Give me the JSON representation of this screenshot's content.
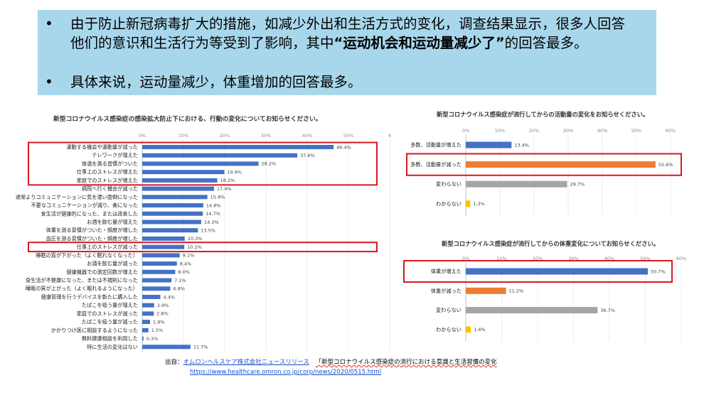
{
  "slide": {
    "bullets": [
      {
        "marker": "•",
        "pre": "由于防止新冠病毒扩大的措施，如减少外出和生活方式的变化，调查结果显示，很多人回答他们的意识和生活行为等受到了影响，其中",
        "bold": "“运动机会和运动量减少了”",
        "post": "的回答最多。"
      },
      {
        "marker": "•",
        "pre": "具体来说，运动量减少，体重增加的回答最多。",
        "bold": "",
        "post": ""
      }
    ],
    "source": {
      "label": "出自：",
      "publisher": "オムロンヘルスケア株式会社ニュースリリース",
      "citation": "「新型コロナウイルス感染症の流行における意識と生活習慣の変化",
      "url": "https://www.healthcare.omron.co.jp/corp/news/2020/0515.html"
    }
  },
  "chart_data": [
    {
      "type": "bar",
      "orientation": "horizontal",
      "title": "新型コロナウイルス感染症の感染拡大防止下における、行動の変化についてお知らせください。",
      "xlim": [
        0,
        60
      ],
      "xticks": [
        "0%",
        "10%",
        "20%",
        "30%",
        "40%",
        "50%",
        "6"
      ],
      "color": "#4472c4",
      "categories": [
        "運動する機会や運動量が減った",
        "テレワークが増えた",
        "体温を測る習慣がついた",
        "仕事上のストレスが増えた",
        "家庭でのストレスが増えた",
        "病院へ行く機会が減った",
        "通常よりコミュニケーションに気を遣い面倒になった",
        "不要なコミュニケーションが減り、楽になった",
        "食生活が健康的になった、または改善した",
        "お酒を飲む量が増えた",
        "体重を測る習慣がついた・頻度が増した",
        "血圧を測る習慣がついた・頻度が増した",
        "仕事上のストレスが減った",
        "睡眠の質が下がった（よく眠れなくなった）",
        "お酒を飲む量が減った",
        "健康機器での測定回数が増えた",
        "食生活が不健康になった、または不規則になった",
        "睡眠の質が上がった（よく眠れるようになった）",
        "健康管理を行うデバイスを新たに購入した",
        "たばこを吸う量が増えた",
        "家庭でのストレスが減った",
        "たばこを吸う量が減った",
        "かかりつけ医に相談するようになった",
        "無料健康相談を利用した",
        "特に生活の変化はない"
      ],
      "values": [
        46.4,
        37.6,
        28.2,
        19.9,
        18.2,
        17.4,
        15.8,
        14.8,
        14.7,
        14.3,
        13.5,
        10.3,
        10.2,
        9.1,
        8.4,
        8.0,
        7.1,
        6.8,
        4.4,
        2.9,
        2.8,
        1.9,
        1.5,
        0.3,
        11.7
      ],
      "value_labels": [
        "46.4%",
        "37.6%",
        "28.2%",
        "19.9%",
        "18.2%",
        "17.4%",
        "15.8%",
        "14.8%",
        "14.7%",
        "14.3%",
        "13.5%",
        "10.3%",
        "10.2%",
        "9.1%",
        "8.4%",
        "8.0%",
        "7.1%",
        "6.8%",
        "4.4%",
        "2.9%",
        "2.8%",
        "1.9%",
        "1.5%",
        "0.3%",
        "11.7%"
      ],
      "highlight_groups": [
        [
          0,
          4
        ],
        [
          12,
          12
        ]
      ]
    },
    {
      "type": "bar",
      "orientation": "horizontal",
      "title": "新型コロナウイルス感染症が流行してからの活動量の変化をお知らせください。",
      "xlim": [
        0,
        60
      ],
      "xticks": [
        "0%",
        "10%",
        "20%",
        "30%",
        "40%",
        "50%",
        "60%"
      ],
      "categories": [
        "多数、活動量が増えた",
        "多数、活動量が減った",
        "変わらない",
        "わからない"
      ],
      "values": [
        13.4,
        55.6,
        29.7,
        1.3
      ],
      "value_labels": [
        "13.4%",
        "55.6%",
        "29.7%",
        "1.3%"
      ],
      "colors": [
        "#4472c4",
        "#ed7d31",
        "#a5a5a5",
        "#ffc000"
      ],
      "highlight_groups": [
        [
          1,
          1
        ]
      ]
    },
    {
      "type": "bar",
      "orientation": "horizontal",
      "title": "新型コロナウイルス感染症が流行してからの体重変化についてお知らせください。",
      "xlim": [
        0,
        60
      ],
      "xticks": [
        "0%",
        "10%",
        "20%",
        "30%",
        "40%",
        "50%",
        "60%"
      ],
      "categories": [
        "体重が増えた",
        "体重が減った",
        "変わらない",
        "わからない"
      ],
      "values": [
        50.7,
        11.2,
        36.7,
        1.4
      ],
      "value_labels": [
        "50.7%",
        "11.2%",
        "36.7%",
        "1.4%"
      ],
      "colors": [
        "#4472c4",
        "#ed7d31",
        "#a5a5a5",
        "#ffc000"
      ],
      "highlight_groups": [
        [
          0,
          0
        ]
      ]
    }
  ]
}
